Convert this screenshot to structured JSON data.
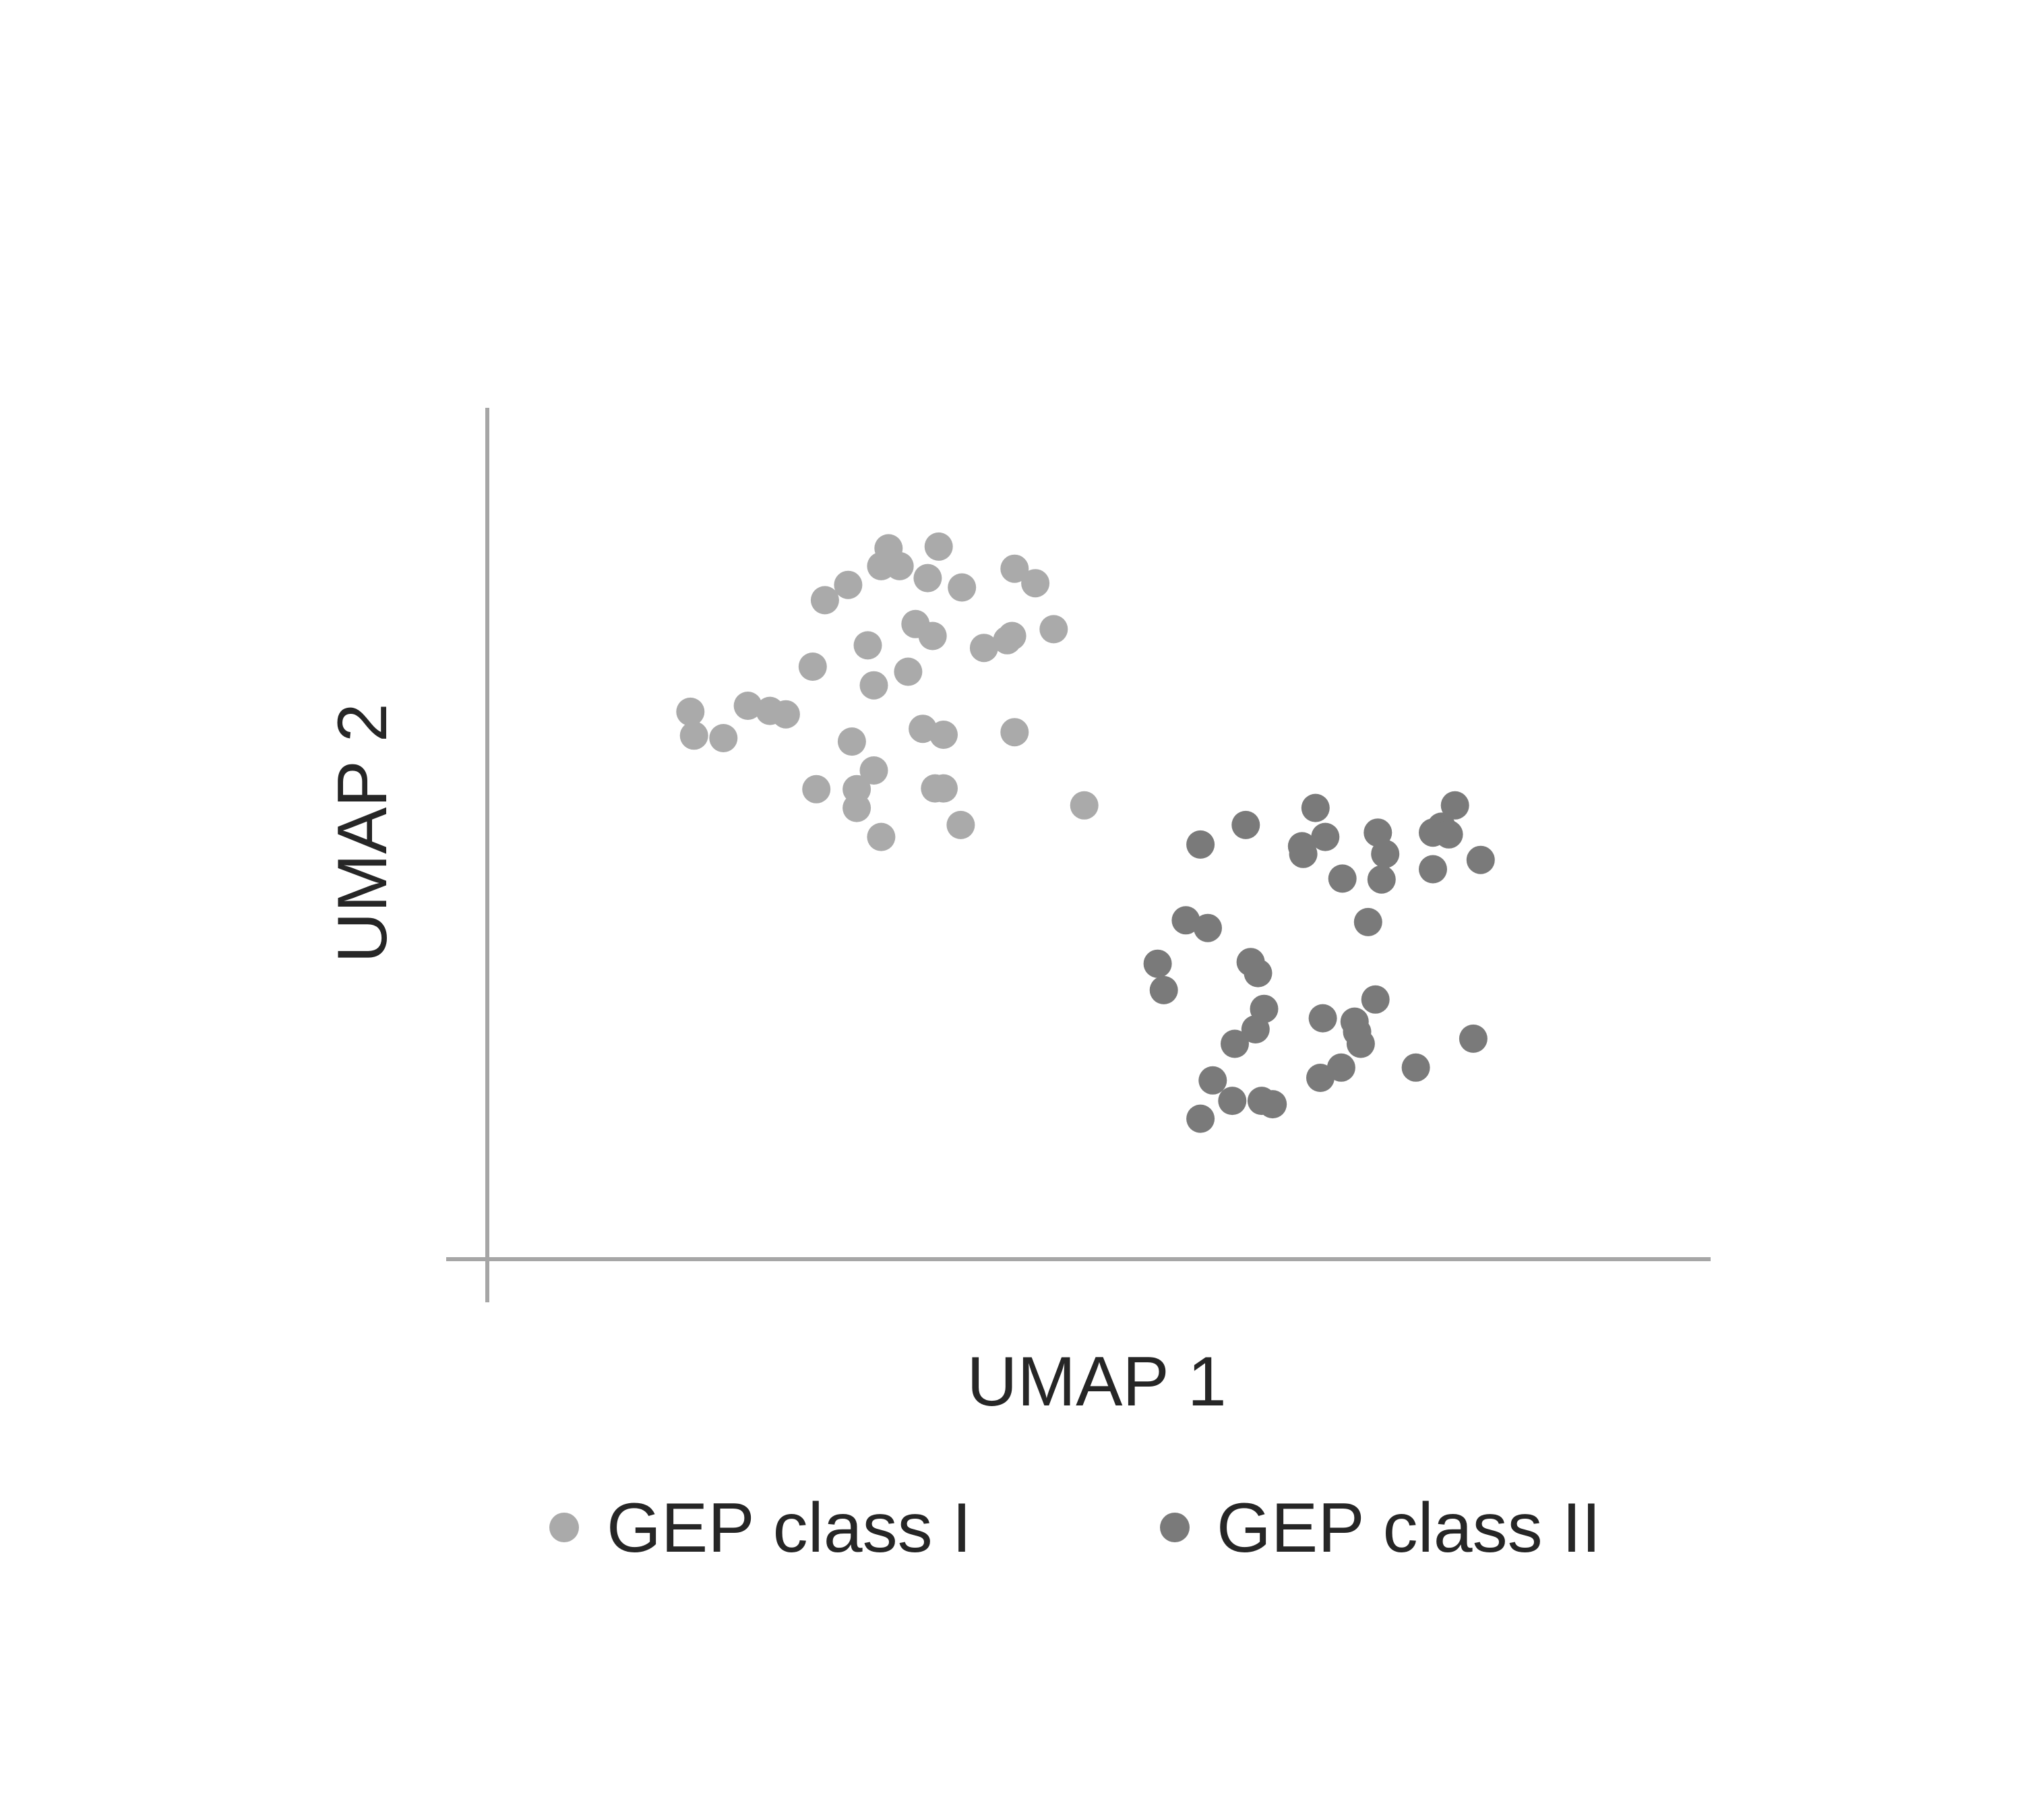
{
  "chart_data": {
    "type": "scatter",
    "xlabel": "UMAP 1",
    "ylabel": "UMAP 2",
    "xlim": [
      0,
      100
    ],
    "ylim": [
      0,
      100
    ],
    "grid": false,
    "legend_position": "bottom",
    "series": [
      {
        "name": "GEP class I",
        "color": "#aaaaaa",
        "points": [
          [
            16.6,
            64.3
          ],
          [
            16.9,
            61.5
          ],
          [
            19.3,
            61.2
          ],
          [
            21.3,
            65.0
          ],
          [
            23.1,
            64.4
          ],
          [
            24.4,
            64.0
          ],
          [
            26.6,
            69.6
          ],
          [
            26.9,
            55.2
          ],
          [
            27.6,
            77.4
          ],
          [
            29.5,
            79.2
          ],
          [
            29.8,
            60.8
          ],
          [
            30.2,
            55.2
          ],
          [
            30.2,
            53.0
          ],
          [
            31.1,
            72.1
          ],
          [
            31.6,
            67.4
          ],
          [
            31.6,
            57.4
          ],
          [
            32.2,
            49.6
          ],
          [
            32.2,
            81.4
          ],
          [
            32.8,
            83.5
          ],
          [
            33.7,
            81.4
          ],
          [
            34.4,
            69.0
          ],
          [
            35.0,
            74.6
          ],
          [
            35.6,
            62.3
          ],
          [
            36.0,
            80.0
          ],
          [
            36.4,
            73.2
          ],
          [
            36.6,
            55.3
          ],
          [
            36.9,
            83.7
          ],
          [
            37.3,
            55.3
          ],
          [
            37.3,
            61.6
          ],
          [
            38.7,
            51.0
          ],
          [
            38.8,
            78.9
          ],
          [
            40.6,
            71.8
          ],
          [
            42.5,
            72.7
          ],
          [
            42.9,
            73.2
          ],
          [
            43.1,
            81.1
          ],
          [
            43.1,
            61.9
          ],
          [
            44.8,
            79.4
          ],
          [
            46.3,
            74.0
          ],
          [
            48.8,
            53.3
          ]
        ]
      },
      {
        "name": "GEP class II",
        "color": "#7a7a7a",
        "points": [
          [
            54.8,
            34.7
          ],
          [
            55.3,
            31.6
          ],
          [
            57.1,
            39.8
          ],
          [
            58.3,
            16.5
          ],
          [
            58.3,
            48.7
          ],
          [
            58.9,
            38.9
          ],
          [
            59.3,
            21.0
          ],
          [
            60.9,
            18.6
          ],
          [
            61.1,
            25.3
          ],
          [
            62.0,
            51.0
          ],
          [
            62.4,
            34.9
          ],
          [
            62.8,
            27.0
          ],
          [
            63.0,
            33.6
          ],
          [
            63.3,
            18.6
          ],
          [
            63.5,
            29.4
          ],
          [
            64.2,
            18.2
          ],
          [
            66.6,
            48.5
          ],
          [
            66.7,
            47.6
          ],
          [
            67.7,
            53.0
          ],
          [
            68.1,
            21.3
          ],
          [
            68.3,
            28.3
          ],
          [
            68.5,
            49.6
          ],
          [
            69.8,
            22.5
          ],
          [
            69.9,
            44.7
          ],
          [
            70.9,
            27.9
          ],
          [
            71.1,
            26.7
          ],
          [
            71.4,
            25.3
          ],
          [
            72.0,
            39.6
          ],
          [
            72.6,
            30.5
          ],
          [
            72.8,
            50.1
          ],
          [
            73.1,
            44.6
          ],
          [
            73.4,
            47.6
          ],
          [
            75.9,
            22.5
          ],
          [
            77.3,
            50.1
          ],
          [
            77.3,
            45.8
          ],
          [
            78.0,
            50.8
          ],
          [
            78.6,
            49.9
          ],
          [
            79.1,
            53.3
          ],
          [
            80.6,
            25.9
          ],
          [
            81.2,
            46.9
          ]
        ]
      }
    ]
  }
}
